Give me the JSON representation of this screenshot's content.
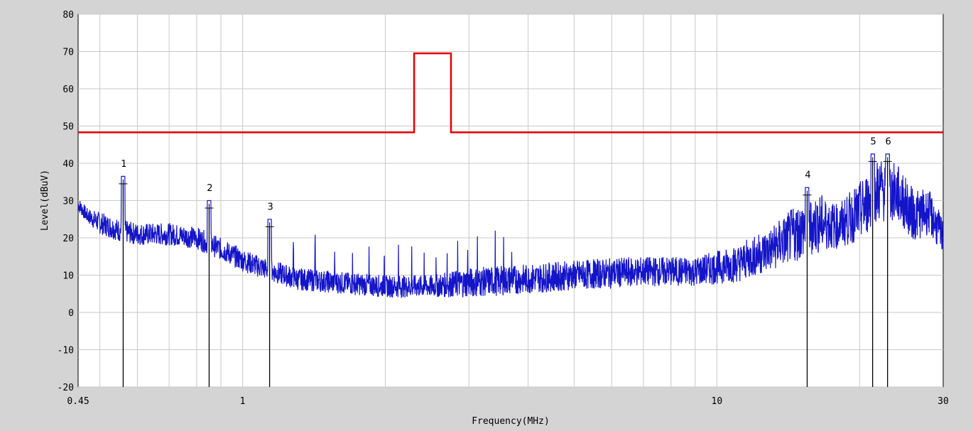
{
  "chart_data": {
    "type": "line",
    "title": "",
    "xlabel": "Frequency(MHz)",
    "ylabel": "Level(dBuV)",
    "x_scale": "log",
    "xlim": [
      0.45,
      30
    ],
    "ylim": [
      -20,
      80
    ],
    "y_ticks": [
      80,
      70,
      60,
      50,
      40,
      30,
      20,
      10,
      0,
      -10,
      -20
    ],
    "x_tick_labels": [
      "0.45",
      "1",
      "10",
      "30"
    ],
    "grid": true,
    "colors": {
      "limit": "#e00000",
      "trace": "#1414c8",
      "markers": "#000000",
      "grid": "#c8c8c8",
      "background": "#ffffff"
    },
    "limit_line": {
      "x": [
        0.45,
        2.3,
        2.3,
        2.75,
        2.75,
        30
      ],
      "y": [
        48.3,
        48.3,
        69.5,
        69.5,
        48.3,
        48.3
      ]
    },
    "trace_envelope": {
      "x": [
        0.45,
        0.47,
        0.5,
        0.55,
        0.6,
        0.7,
        0.8,
        0.9,
        1.0,
        1.1,
        1.3,
        1.6,
        2.0,
        2.5,
        3.0,
        4.0,
        5.0,
        7.0,
        9.0,
        11.0,
        13.0,
        15.0,
        16.5,
        18.0,
        20.0,
        22.0,
        24.0,
        26.0,
        28.0,
        30.0
      ],
      "base": [
        29,
        26,
        24,
        22,
        21,
        21,
        20,
        17,
        14,
        12,
        9,
        8,
        7,
        7,
        8,
        9,
        10,
        11,
        11,
        13,
        17,
        22,
        24,
        23,
        27,
        33,
        32,
        26,
        27,
        20
      ],
      "amp": [
        2,
        2,
        3,
        3,
        3,
        3,
        3,
        3,
        3,
        3,
        3,
        3,
        3,
        3,
        4,
        4,
        4,
        4,
        4,
        5,
        6,
        8,
        8,
        6,
        8,
        9,
        8,
        7,
        6,
        5
      ]
    },
    "markers": [
      {
        "label": "1",
        "freq": 0.56,
        "level": 34.5
      },
      {
        "label": "2",
        "freq": 0.85,
        "level": 28.0
      },
      {
        "label": "3",
        "freq": 1.14,
        "level": 23.0
      },
      {
        "label": "4",
        "freq": 15.5,
        "level": 31.5
      },
      {
        "label": "5",
        "freq": 21.3,
        "level": 40.5
      },
      {
        "label": "6",
        "freq": 22.9,
        "level": 40.5
      }
    ]
  }
}
